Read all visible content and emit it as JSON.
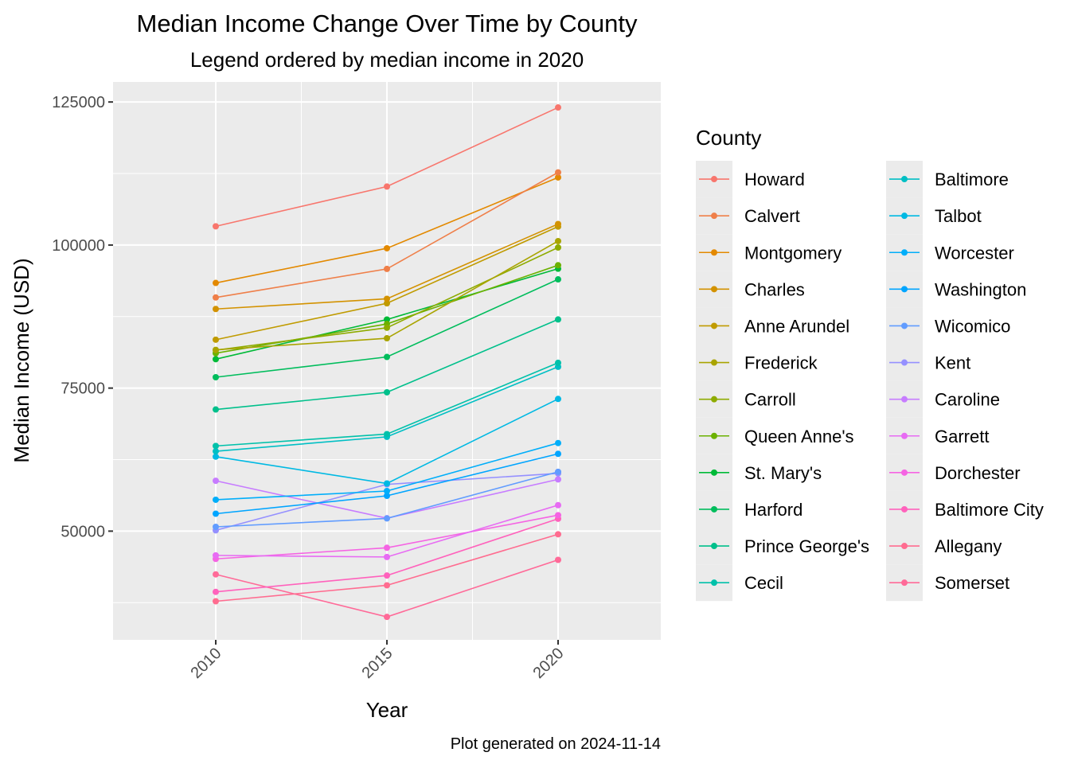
{
  "chart_data": {
    "type": "line",
    "title": "Median Income Change Over Time by County",
    "subtitle": "Legend ordered by median income in 2020",
    "xlabel": "Year",
    "ylabel": "Median Income (USD)",
    "caption": "Plot generated on 2024-11-14",
    "x": [
      2010,
      2015,
      2020
    ],
    "xlim": [
      2007,
      2023
    ],
    "ylim": [
      31000,
      128500
    ],
    "y_ticks": [
      50000,
      75000,
      100000,
      125000
    ],
    "grid": true,
    "legend": {
      "title": "County",
      "placement": "right",
      "columns": 2
    },
    "series": [
      {
        "name": "Howard",
        "color": "#F8766D",
        "values": [
          103273,
          110224,
          124042
        ]
      },
      {
        "name": "Calvert",
        "color": "#EF7F49",
        "values": [
          90838,
          95828,
          112696
        ]
      },
      {
        "name": "Montgomery",
        "color": "#E38900",
        "values": [
          93373,
          99435,
          111812
        ]
      },
      {
        "name": "Charles",
        "color": "#D39200",
        "values": [
          88825,
          90607,
          103678
        ]
      },
      {
        "name": "Anne Arundel",
        "color": "#C09B00",
        "values": [
          83456,
          89818,
          103225
        ]
      },
      {
        "name": "Frederick",
        "color": "#A9A400",
        "values": [
          81686,
          83706,
          100685
        ]
      },
      {
        "name": "Carroll",
        "color": "#8EAB00",
        "values": [
          81621,
          85545,
          99569
        ]
      },
      {
        "name": "Queen Anne's",
        "color": "#6BB100",
        "values": [
          81096,
          86212,
          96467
        ]
      },
      {
        "name": "St. Mary's",
        "color": "#00BA38",
        "values": [
          80053,
          86987,
          95864
        ]
      },
      {
        "name": "Harford",
        "color": "#00BD5C",
        "values": [
          76899,
          80441,
          94003
        ]
      },
      {
        "name": "Prince George's",
        "color": "#00C08B",
        "values": [
          71260,
          74260,
          86994
        ]
      },
      {
        "name": "Cecil",
        "color": "#00C1AA",
        "values": [
          64886,
          66960,
          79415
        ]
      },
      {
        "name": "Baltimore",
        "color": "#00BFC4",
        "values": [
          63959,
          66486,
          78724
        ]
      },
      {
        "name": "Talbot",
        "color": "#00B9E3",
        "values": [
          63017,
          58329,
          73102
        ]
      },
      {
        "name": "Worcester",
        "color": "#00AEFA",
        "values": [
          55487,
          57010,
          65396
        ]
      },
      {
        "name": "Washington",
        "color": "#00A5FF",
        "values": [
          53045,
          56176,
          63510
        ]
      },
      {
        "name": "Wicomico",
        "color": "#619CFF",
        "values": [
          50752,
          52225,
          60366
        ]
      },
      {
        "name": "Kent",
        "color": "#9590FF",
        "values": [
          50141,
          58173,
          60093
        ]
      },
      {
        "name": "Caroline",
        "color": "#C77CFF",
        "values": [
          58799,
          52257,
          59042
        ]
      },
      {
        "name": "Garrett",
        "color": "#E76BF3",
        "values": [
          45760,
          45482,
          54542
        ]
      },
      {
        "name": "Dorchester",
        "color": "#F564E3",
        "values": [
          45151,
          47091,
          52790
        ]
      },
      {
        "name": "Baltimore City",
        "color": "#FF62BC",
        "values": [
          39386,
          42241,
          52164
        ]
      },
      {
        "name": "Allegany",
        "color": "#FF6C90",
        "values": [
          37747,
          40530,
          49449
        ]
      },
      {
        "name": "Somerset",
        "color": "#FF6A98",
        "values": [
          42443,
          35009,
          44980
        ]
      }
    ]
  }
}
